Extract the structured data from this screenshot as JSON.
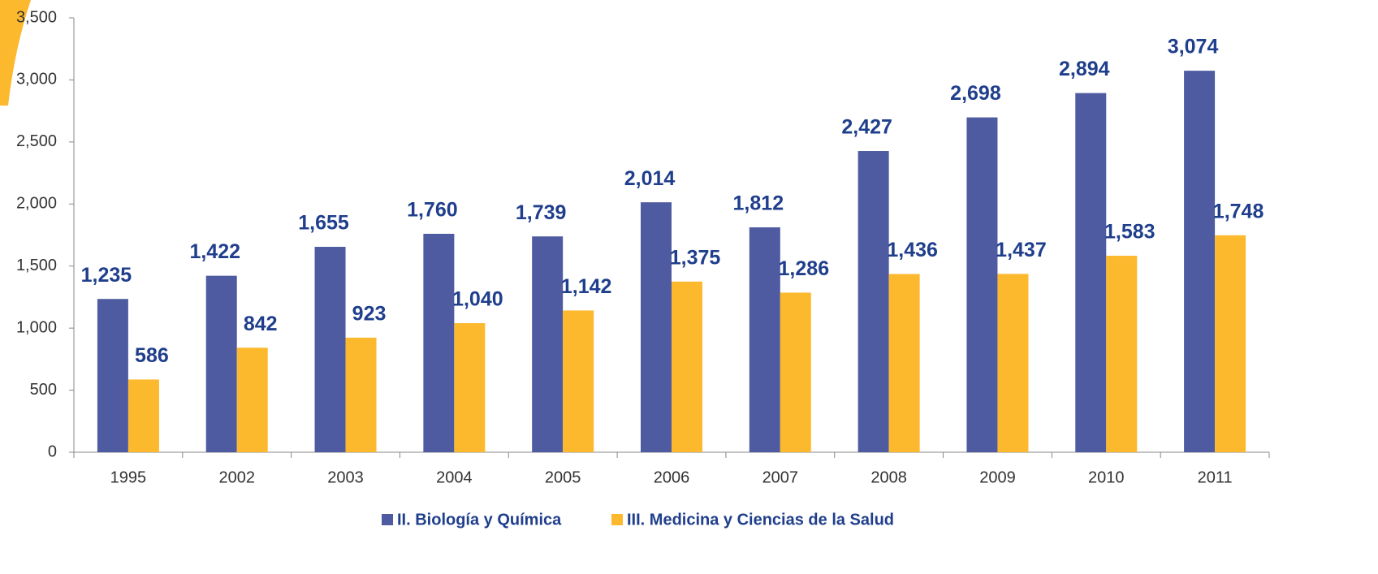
{
  "chart_data": {
    "type": "bar",
    "categories": [
      "1995",
      "2002",
      "2003",
      "2004",
      "2005",
      "2006",
      "2007",
      "2008",
      "2009",
      "2010",
      "2011"
    ],
    "series": [
      {
        "name": "II. Biología y Química",
        "color": "#4e5ba0",
        "values": [
          1235,
          1422,
          1655,
          1760,
          1739,
          2014,
          1812,
          2427,
          2698,
          2894,
          3074
        ],
        "value_labels": [
          "1,235",
          "1,422",
          "1,655",
          "1,760",
          "1,739",
          "2,014",
          "1,812",
          "2,427",
          "2,698",
          "2,894",
          "3,074"
        ]
      },
      {
        "name": "III. Medicina y Ciencias de la Salud",
        "color": "#fdb92e",
        "values": [
          586,
          842,
          923,
          1040,
          1142,
          1375,
          1286,
          1436,
          1437,
          1583,
          1748
        ],
        "value_labels": [
          "586",
          "842",
          "923",
          "1,040",
          "1,142",
          "1,375",
          "1,286",
          "1,436",
          "1,437",
          "1,583",
          "1,748"
        ]
      }
    ],
    "ylim": [
      0,
      3500
    ],
    "yticks": [
      0,
      500,
      {
        "value": 1000,
        "label": "1,000"
      },
      {
        "value": 1500,
        "label": "1,500"
      },
      {
        "value": 2000,
        "label": "2,000"
      },
      {
        "value": 2500,
        "label": "2,500"
      },
      {
        "value": 3000,
        "label": "3,000"
      },
      {
        "value": 3500,
        "label": "3,500"
      }
    ],
    "legend": "bottom"
  }
}
